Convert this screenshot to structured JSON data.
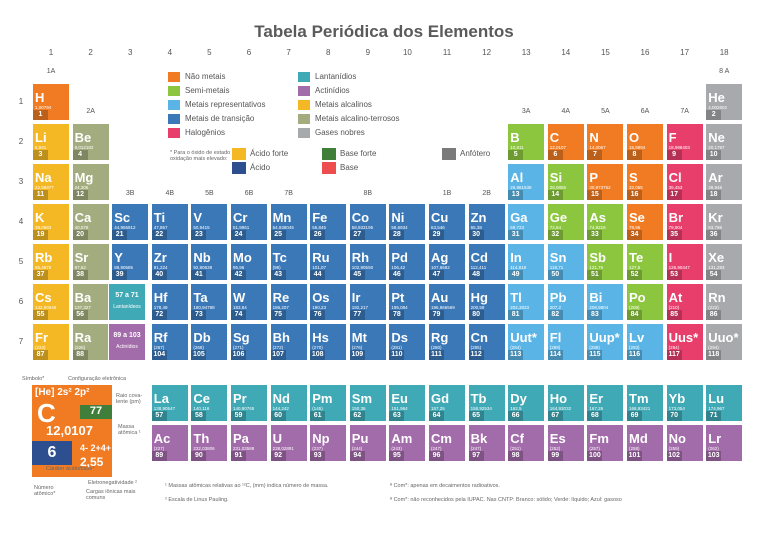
{
  "title": "Tabela Periódica dos Elementos",
  "groups": [
    "1",
    "2",
    "3",
    "4",
    "5",
    "6",
    "7",
    "8",
    "9",
    "10",
    "11",
    "12",
    "13",
    "14",
    "15",
    "16",
    "17",
    "18"
  ],
  "group_labels": [
    "1A",
    "2A",
    "3B",
    "4B",
    "5B",
    "6B",
    "7B",
    "8B",
    "1B",
    "2B",
    "3A",
    "4A",
    "5A",
    "6A",
    "7A",
    "8 A"
  ],
  "periods": [
    "1",
    "2",
    "3",
    "4",
    "5",
    "6",
    "7"
  ],
  "lanthanide_label": "57 a 71",
  "lanthanide_sub": "Lantanídeos",
  "actinide_label": "89 a 103",
  "actinide_sub": "Actinídios",
  "colors": {
    "nonmetal": "#f07b23",
    "semimetal": "#8cc63f",
    "representative": "#5ab4e5",
    "transition": "#3a78b8",
    "halogen": "#e83e6c",
    "lanthanide": "#3fa9b5",
    "actinide": "#a26ba9",
    "alkali": "#f3b824",
    "alkaline": "#a3ac7e",
    "noble": "#a7a9ac"
  },
  "legend": [
    {
      "label": "Não metais",
      "color": "nonmetal"
    },
    {
      "label": "Semi-metais",
      "color": "semimetal"
    },
    {
      "label": "Metais representativos",
      "color": "representative"
    },
    {
      "label": "Metais de transição",
      "color": "transition"
    },
    {
      "label": "Halogênios",
      "color": "halogen"
    },
    {
      "label": "Lantanídios",
      "color": "lanthanide"
    },
    {
      "label": "Actinídios",
      "color": "actinide"
    },
    {
      "label": "Metais alcalinos",
      "color": "alkali"
    },
    {
      "label": "Metais alcalino-terrosos",
      "color": "alkaline"
    },
    {
      "label": "Gases nobres",
      "color": "noble"
    }
  ],
  "oxide_note": "* Para o óxido de estado de oxidação mais elevado:",
  "oxide_legend": [
    {
      "label": "Ácido forte",
      "color": "#f3b824"
    },
    {
      "label": "Ácido",
      "color": "#2e4f8f"
    },
    {
      "label": "Base forte",
      "color": "#3f7f3a"
    },
    {
      "label": "Base",
      "color": "#ee4d4d"
    },
    {
      "label": "Anfótero",
      "color": "#7a7a7a"
    }
  ],
  "elements": [
    {
      "s": "H",
      "z": "1",
      "m": "1,00794",
      "g": 1,
      "p": 1,
      "c": "nonmetal"
    },
    {
      "s": "He",
      "z": "2",
      "m": "4,002602",
      "g": 18,
      "p": 1,
      "c": "noble"
    },
    {
      "s": "Li",
      "z": "3",
      "m": "6,941",
      "g": 1,
      "p": 2,
      "c": "alkali"
    },
    {
      "s": "Be",
      "z": "4",
      "m": "9,012182",
      "g": 2,
      "p": 2,
      "c": "alkaline"
    },
    {
      "s": "B",
      "z": "5",
      "m": "10,811",
      "g": 13,
      "p": 2,
      "c": "semimetal"
    },
    {
      "s": "C",
      "z": "6",
      "m": "12,0107",
      "g": 14,
      "p": 2,
      "c": "nonmetal"
    },
    {
      "s": "N",
      "z": "7",
      "m": "14,0067",
      "g": 15,
      "p": 2,
      "c": "nonmetal"
    },
    {
      "s": "O",
      "z": "8",
      "m": "15,9994",
      "g": 16,
      "p": 2,
      "c": "nonmetal"
    },
    {
      "s": "F",
      "z": "9",
      "m": "18,998403",
      "g": 17,
      "p": 2,
      "c": "halogen"
    },
    {
      "s": "Ne",
      "z": "10",
      "m": "20,1797",
      "g": 18,
      "p": 2,
      "c": "noble"
    },
    {
      "s": "Na",
      "z": "11",
      "m": "22,98977",
      "g": 1,
      "p": 3,
      "c": "alkali"
    },
    {
      "s": "Mg",
      "z": "12",
      "m": "24,305",
      "g": 2,
      "p": 3,
      "c": "alkaline"
    },
    {
      "s": "Al",
      "z": "13",
      "m": "26,981538",
      "g": 13,
      "p": 3,
      "c": "representative"
    },
    {
      "s": "Si",
      "z": "14",
      "m": "28,0855",
      "g": 14,
      "p": 3,
      "c": "semimetal"
    },
    {
      "s": "P",
      "z": "15",
      "m": "30,973762",
      "g": 15,
      "p": 3,
      "c": "nonmetal"
    },
    {
      "s": "S",
      "z": "16",
      "m": "32,065",
      "g": 16,
      "p": 3,
      "c": "nonmetal"
    },
    {
      "s": "Cl",
      "z": "17",
      "m": "35,453",
      "g": 17,
      "p": 3,
      "c": "halogen"
    },
    {
      "s": "Ar",
      "z": "18",
      "m": "39,948",
      "g": 18,
      "p": 3,
      "c": "noble"
    },
    {
      "s": "K",
      "z": "19",
      "m": "39,0983",
      "g": 1,
      "p": 4,
      "c": "alkali"
    },
    {
      "s": "Ca",
      "z": "20",
      "m": "40,078",
      "g": 2,
      "p": 4,
      "c": "alkaline"
    },
    {
      "s": "Sc",
      "z": "21",
      "m": "44,955912",
      "g": 3,
      "p": 4,
      "c": "transition"
    },
    {
      "s": "Ti",
      "z": "22",
      "m": "47,867",
      "g": 4,
      "p": 4,
      "c": "transition"
    },
    {
      "s": "V",
      "z": "23",
      "m": "50,9415",
      "g": 5,
      "p": 4,
      "c": "transition"
    },
    {
      "s": "Cr",
      "z": "24",
      "m": "51,9961",
      "g": 6,
      "p": 4,
      "c": "transition"
    },
    {
      "s": "Mn",
      "z": "25",
      "m": "54,938045",
      "g": 7,
      "p": 4,
      "c": "transition"
    },
    {
      "s": "Fe",
      "z": "26",
      "m": "55,845",
      "g": 8,
      "p": 4,
      "c": "transition"
    },
    {
      "s": "Co",
      "z": "27",
      "m": "58,933195",
      "g": 9,
      "p": 4,
      "c": "transition"
    },
    {
      "s": "Ni",
      "z": "28",
      "m": "58,6934",
      "g": 10,
      "p": 4,
      "c": "transition"
    },
    {
      "s": "Cu",
      "z": "29",
      "m": "63,546",
      "g": 11,
      "p": 4,
      "c": "transition"
    },
    {
      "s": "Zn",
      "z": "30",
      "m": "65,38",
      "g": 12,
      "p": 4,
      "c": "transition"
    },
    {
      "s": "Ga",
      "z": "31",
      "m": "69,723",
      "g": 13,
      "p": 4,
      "c": "representative"
    },
    {
      "s": "Ge",
      "z": "32",
      "m": "72,64",
      "g": 14,
      "p": 4,
      "c": "semimetal"
    },
    {
      "s": "As",
      "z": "33",
      "m": "74,9216",
      "g": 15,
      "p": 4,
      "c": "semimetal"
    },
    {
      "s": "Se",
      "z": "34",
      "m": "78,96",
      "g": 16,
      "p": 4,
      "c": "nonmetal"
    },
    {
      "s": "Br",
      "z": "35",
      "m": "79,904",
      "g": 17,
      "p": 4,
      "c": "halogen"
    },
    {
      "s": "Kr",
      "z": "36",
      "m": "83,798",
      "g": 18,
      "p": 4,
      "c": "noble"
    },
    {
      "s": "Rb",
      "z": "37",
      "m": "85,4678",
      "g": 1,
      "p": 5,
      "c": "alkali"
    },
    {
      "s": "Sr",
      "z": "38",
      "m": "87,62",
      "g": 2,
      "p": 5,
      "c": "alkaline"
    },
    {
      "s": "Y",
      "z": "39",
      "m": "88,90585",
      "g": 3,
      "p": 5,
      "c": "transition"
    },
    {
      "s": "Zr",
      "z": "40",
      "m": "91,224",
      "g": 4,
      "p": 5,
      "c": "transition"
    },
    {
      "s": "Nb",
      "z": "41",
      "m": "92,90638",
      "g": 5,
      "p": 5,
      "c": "transition"
    },
    {
      "s": "Mo",
      "z": "42",
      "m": "95,96",
      "g": 6,
      "p": 5,
      "c": "transition"
    },
    {
      "s": "Tc",
      "z": "43",
      "m": "(98)",
      "g": 7,
      "p": 5,
      "c": "transition"
    },
    {
      "s": "Ru",
      "z": "44",
      "m": "101,07",
      "g": 8,
      "p": 5,
      "c": "transition"
    },
    {
      "s": "Rh",
      "z": "45",
      "m": "102,90550",
      "g": 9,
      "p": 5,
      "c": "transition"
    },
    {
      "s": "Pd",
      "z": "46",
      "m": "106,42",
      "g": 10,
      "p": 5,
      "c": "transition"
    },
    {
      "s": "Ag",
      "z": "47",
      "m": "107,8682",
      "g": 11,
      "p": 5,
      "c": "transition"
    },
    {
      "s": "Cd",
      "z": "48",
      "m": "112,411",
      "g": 12,
      "p": 5,
      "c": "transition"
    },
    {
      "s": "In",
      "z": "49",
      "m": "114,818",
      "g": 13,
      "p": 5,
      "c": "representative"
    },
    {
      "s": "Sn",
      "z": "50",
      "m": "118,71",
      "g": 14,
      "p": 5,
      "c": "representative"
    },
    {
      "s": "Sb",
      "z": "51",
      "m": "121,76",
      "g": 15,
      "p": 5,
      "c": "semimetal"
    },
    {
      "s": "Te",
      "z": "52",
      "m": "127,6",
      "g": 16,
      "p": 5,
      "c": "semimetal"
    },
    {
      "s": "I",
      "z": "53",
      "m": "126,90447",
      "g": 17,
      "p": 5,
      "c": "halogen"
    },
    {
      "s": "Xe",
      "z": "54",
      "m": "131,293",
      "g": 18,
      "p": 5,
      "c": "noble"
    },
    {
      "s": "Cs",
      "z": "55",
      "m": "132,90545",
      "g": 1,
      "p": 6,
      "c": "alkali"
    },
    {
      "s": "Ba",
      "z": "56",
      "m": "137,327",
      "g": 2,
      "p": 6,
      "c": "alkaline"
    },
    {
      "s": "Hf",
      "z": "72",
      "m": "178,49",
      "g": 4,
      "p": 6,
      "c": "transition"
    },
    {
      "s": "Ta",
      "z": "73",
      "m": "180,94788",
      "g": 5,
      "p": 6,
      "c": "transition"
    },
    {
      "s": "W",
      "z": "74",
      "m": "183,84",
      "g": 6,
      "p": 6,
      "c": "transition"
    },
    {
      "s": "Re",
      "z": "75",
      "m": "186,207",
      "g": 7,
      "p": 6,
      "c": "transition"
    },
    {
      "s": "Os",
      "z": "76",
      "m": "190,23",
      "g": 8,
      "p": 6,
      "c": "transition"
    },
    {
      "s": "Ir",
      "z": "77",
      "m": "192,217",
      "g": 9,
      "p": 6,
      "c": "transition"
    },
    {
      "s": "Pt",
      "z": "78",
      "m": "195,084",
      "g": 10,
      "p": 6,
      "c": "transition"
    },
    {
      "s": "Au",
      "z": "79",
      "m": "196,966569",
      "g": 11,
      "p": 6,
      "c": "transition"
    },
    {
      "s": "Hg",
      "z": "80",
      "m": "200,59",
      "g": 12,
      "p": 6,
      "c": "transition"
    },
    {
      "s": "Tl",
      "z": "81",
      "m": "204,3833",
      "g": 13,
      "p": 6,
      "c": "representative"
    },
    {
      "s": "Pb",
      "z": "82",
      "m": "207,2",
      "g": 14,
      "p": 6,
      "c": "representative"
    },
    {
      "s": "Bi",
      "z": "83",
      "m": "208,9804",
      "g": 15,
      "p": 6,
      "c": "representative"
    },
    {
      "s": "Po",
      "z": "84",
      "m": "(209)",
      "g": 16,
      "p": 6,
      "c": "semimetal"
    },
    {
      "s": "At",
      "z": "85",
      "m": "(210)",
      "g": 17,
      "p": 6,
      "c": "halogen"
    },
    {
      "s": "Rn",
      "z": "86",
      "m": "(222)",
      "g": 18,
      "p": 6,
      "c": "noble"
    },
    {
      "s": "Fr",
      "z": "87",
      "m": "(223)",
      "g": 1,
      "p": 7,
      "c": "alkali"
    },
    {
      "s": "Ra",
      "z": "88",
      "m": "(226)",
      "g": 2,
      "p": 7,
      "c": "alkaline"
    },
    {
      "s": "Rf",
      "z": "104",
      "m": "(267)",
      "g": 4,
      "p": 7,
      "c": "transition"
    },
    {
      "s": "Db",
      "z": "105",
      "m": "(268)",
      "g": 5,
      "p": 7,
      "c": "transition"
    },
    {
      "s": "Sg",
      "z": "106",
      "m": "(271)",
      "g": 6,
      "p": 7,
      "c": "transition"
    },
    {
      "s": "Bh",
      "z": "107",
      "m": "(272)",
      "g": 7,
      "p": 7,
      "c": "transition"
    },
    {
      "s": "Hs",
      "z": "108",
      "m": "(270)",
      "g": 8,
      "p": 7,
      "c": "transition"
    },
    {
      "s": "Mt",
      "z": "109",
      "m": "(276)",
      "g": 9,
      "p": 7,
      "c": "transition"
    },
    {
      "s": "Ds",
      "z": "110",
      "m": "(281)",
      "g": 10,
      "p": 7,
      "c": "transition"
    },
    {
      "s": "Rg",
      "z": "111",
      "m": "(280)",
      "g": 11,
      "p": 7,
      "c": "transition"
    },
    {
      "s": "Cn",
      "z": "112",
      "m": "(285)",
      "g": 12,
      "p": 7,
      "c": "transition"
    },
    {
      "s": "Uut*",
      "z": "113",
      "m": "(284)",
      "g": 13,
      "p": 7,
      "c": "representative"
    },
    {
      "s": "Fl",
      "z": "114",
      "m": "(289)",
      "g": 14,
      "p": 7,
      "c": "representative"
    },
    {
      "s": "Uup*",
      "z": "115",
      "m": "(288)",
      "g": 15,
      "p": 7,
      "c": "representative"
    },
    {
      "s": "Lv",
      "z": "116",
      "m": "(293)",
      "g": 16,
      "p": 7,
      "c": "representative"
    },
    {
      "s": "Uus*",
      "z": "117",
      "m": "(294)",
      "g": 17,
      "p": 7,
      "c": "halogen"
    },
    {
      "s": "Uuo*",
      "z": "118",
      "m": "(294)",
      "g": 18,
      "p": 7,
      "c": "noble"
    }
  ],
  "lanthanides": [
    {
      "s": "La",
      "z": "57",
      "m": "138,90547"
    },
    {
      "s": "Ce",
      "z": "58",
      "m": "140,116"
    },
    {
      "s": "Pr",
      "z": "59",
      "m": "140,90765"
    },
    {
      "s": "Nd",
      "z": "60",
      "m": "144,242"
    },
    {
      "s": "Pm",
      "z": "61",
      "m": "(145)"
    },
    {
      "s": "Sm",
      "z": "62",
      "m": "150,36"
    },
    {
      "s": "Eu",
      "z": "63",
      "m": "151,964"
    },
    {
      "s": "Gd",
      "z": "64",
      "m": "157,25"
    },
    {
      "s": "Tb",
      "z": "65",
      "m": "158,92534"
    },
    {
      "s": "Dy",
      "z": "66",
      "m": "162,5"
    },
    {
      "s": "Ho",
      "z": "67",
      "m": "164,93032"
    },
    {
      "s": "Er",
      "z": "68",
      "m": "167,26"
    },
    {
      "s": "Tm",
      "z": "69",
      "m": "168,93421"
    },
    {
      "s": "Yb",
      "z": "70",
      "m": "173,054"
    },
    {
      "s": "Lu",
      "z": "71",
      "m": "174,967"
    }
  ],
  "actinides": [
    {
      "s": "Ac",
      "z": "89",
      "m": "(227)"
    },
    {
      "s": "Th",
      "z": "90",
      "m": "232,03806"
    },
    {
      "s": "Pa",
      "z": "91",
      "m": "231,03588"
    },
    {
      "s": "U",
      "z": "92",
      "m": "238,02891"
    },
    {
      "s": "Np",
      "z": "93",
      "m": "(237)"
    },
    {
      "s": "Pu",
      "z": "94",
      "m": "(244)"
    },
    {
      "s": "Am",
      "z": "95",
      "m": "(243)"
    },
    {
      "s": "Cm",
      "z": "96",
      "m": "(247)"
    },
    {
      "s": "Bk",
      "z": "97",
      "m": "(247)"
    },
    {
      "s": "Cf",
      "z": "98",
      "m": "(251)"
    },
    {
      "s": "Es",
      "z": "99",
      "m": "(252)"
    },
    {
      "s": "Fm",
      "z": "100",
      "m": "(257)"
    },
    {
      "s": "Md",
      "z": "101",
      "m": "(258)"
    },
    {
      "s": "No",
      "z": "102",
      "m": "(259)"
    },
    {
      "s": "Lr",
      "z": "103",
      "m": "(262)"
    }
  ],
  "key": {
    "symbol": "C",
    "config": "[He] 2s² 2p²",
    "z": "6",
    "mass": "12,0107",
    "ox": "4- 2+4+",
    "eneg": "2,55",
    "radius": "77",
    "lbl_symbol": "Símbolo*",
    "lbl_config": "Configuração eletrônica",
    "lbl_radius": "Raio cova-lente (pm)",
    "lbl_mass": "Massa atômica ¹",
    "lbl_acid": "Caráter ácido/base*",
    "lbl_eneg": "Eletronegatividade ²",
    "lbl_charges": "Cargas iônicas mais comuns",
    "lbl_z": "Número atômico*"
  },
  "footnotes": [
    "¹ Massas atômicas relativas ao ¹²C, (mm) indica número de massa.",
    "² Escala de Linus Pauling.",
    "ª Com*: apenas em decaimentos radioativos.",
    "ª Com*: não reconhecidos pela IUPAC. Nas CNTP: Branco: sólido; Verde: líquido; Azul: gasoso"
  ]
}
